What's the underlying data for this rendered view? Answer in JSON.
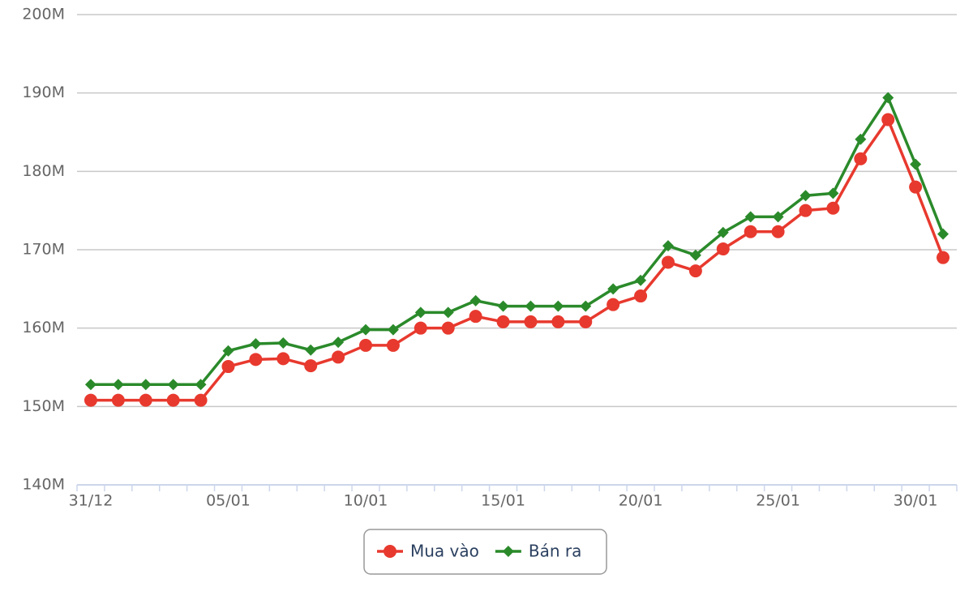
{
  "chart_data": {
    "type": "line",
    "categories": [
      "31/12",
      null,
      null,
      null,
      null,
      "05/01",
      null,
      null,
      null,
      null,
      "10/01",
      null,
      null,
      null,
      null,
      "15/01",
      null,
      null,
      null,
      null,
      "20/01",
      null,
      null,
      null,
      null,
      "25/01",
      null,
      null,
      null,
      null,
      "30/01",
      null
    ],
    "series": [
      {
        "name": "Mua vào",
        "color": "#e8392e",
        "marker": "circle",
        "values": [
          150800000,
          150800000,
          150800000,
          150800000,
          150800000,
          155100000,
          156000000,
          156100000,
          155200000,
          156300000,
          157800000,
          157800000,
          160000000,
          160000000,
          161500000,
          160800000,
          160800000,
          160800000,
          160800000,
          163000000,
          164100000,
          168400000,
          167300000,
          170100000,
          172300000,
          172300000,
          175000000,
          175300000,
          181600000,
          186600000,
          178000000,
          169000000
        ]
      },
      {
        "name": "Bán ra",
        "color": "#2a8a2a",
        "marker": "diamond",
        "values": [
          152800000,
          152800000,
          152800000,
          152800000,
          152800000,
          157100000,
          158000000,
          158100000,
          157200000,
          158200000,
          159800000,
          159800000,
          162000000,
          162000000,
          163500000,
          162800000,
          162800000,
          162800000,
          162800000,
          165000000,
          166100000,
          170500000,
          169300000,
          172200000,
          174200000,
          174200000,
          176900000,
          177200000,
          184100000,
          189400000,
          180900000,
          172000000
        ]
      }
    ],
    "ylim": [
      140000000,
      200000000
    ],
    "yticks": [
      {
        "value": 140000000,
        "label": "140M"
      },
      {
        "value": 150000000,
        "label": "150M"
      },
      {
        "value": 160000000,
        "label": "160M"
      },
      {
        "value": 170000000,
        "label": "170M"
      },
      {
        "value": 180000000,
        "label": "180M"
      },
      {
        "value": 190000000,
        "label": "190M"
      },
      {
        "value": 200000000,
        "label": "200M"
      }
    ],
    "grid": true
  }
}
